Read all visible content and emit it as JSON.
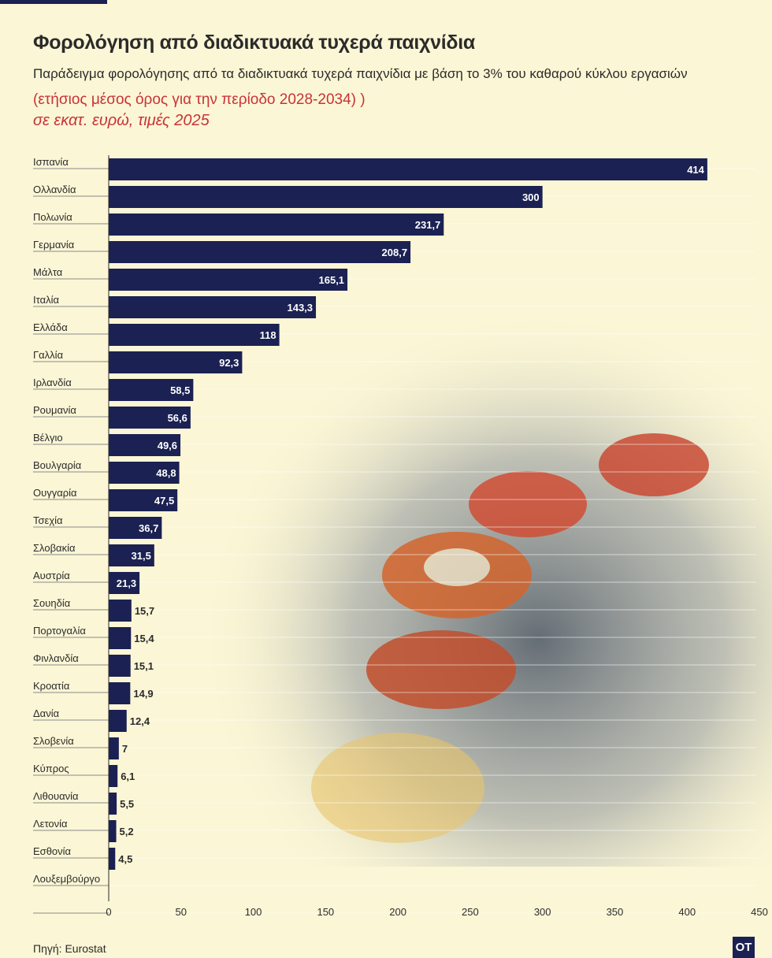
{
  "header": {
    "title": "Φορολόγηση από διαδικτυακά τυχερά παιχνίδια",
    "subtitle": "Παράδειγμα φορολόγησης από τα διαδικτυακά τυχερά παιχνίδια με βάση το 3% του καθαρού κύκλου εργασιών",
    "period": "(ετήσιος μέσος όρος για την περίοδο 2028-2034) )",
    "units": "σε εκατ. ευρώ, τιμές 2025"
  },
  "footer": {
    "source": "Πηγή: Eurostat",
    "logo": "ΟΤ"
  },
  "colors": {
    "bar": "#1b2152",
    "accent": "#c8323a",
    "background": "#fbf6d5"
  },
  "chart_data": {
    "type": "bar",
    "orientation": "horizontal",
    "categories": [
      "Ισπανία",
      "Ολλανδία",
      "Πολωνία",
      "Γερμανία",
      "Μάλτα",
      "Ιταλία",
      "Ελλάδα",
      "Γαλλία",
      "Ιρλανδία",
      "Ρουμανία",
      "Βέλγιο",
      "Βουλγαρία",
      "Ουγγαρία",
      "Τσεχία",
      "Σλοβακία",
      "Αυστρία",
      "Σουηδία",
      "Πορτογαλία",
      "Φινλανδία",
      "Κροατία",
      "Δανία",
      "Σλοβενία",
      "Κύπρος",
      "Λιθουανία",
      "Λετονία",
      "Εσθονία",
      "Λουξεμβούργο"
    ],
    "values": [
      414,
      300,
      231.7,
      208.7,
      165.1,
      143.3,
      118,
      92.3,
      58.5,
      56.6,
      49.6,
      48.8,
      47.5,
      36.7,
      31.5,
      21.3,
      15.7,
      15.4,
      15.1,
      14.9,
      12.4,
      7,
      6.1,
      5.5,
      5.2,
      4.5,
      null
    ],
    "value_labels": [
      "414",
      "300",
      "231,7",
      "208,7",
      "165,1",
      "143,3",
      "118",
      "92,3",
      "58,5",
      "56,6",
      "49,6",
      "48,8",
      "47,5",
      "36,7",
      "31,5",
      "21,3",
      "15,7",
      "15,4",
      "15,1",
      "14,9",
      "12,4",
      "7",
      "6,1",
      "5,5",
      "5,2",
      "4,5",
      ""
    ],
    "xlim": [
      0,
      450
    ],
    "x_ticks": [
      0,
      50,
      100,
      150,
      200,
      250,
      300,
      350,
      400,
      450
    ],
    "grid": "horizontal"
  }
}
